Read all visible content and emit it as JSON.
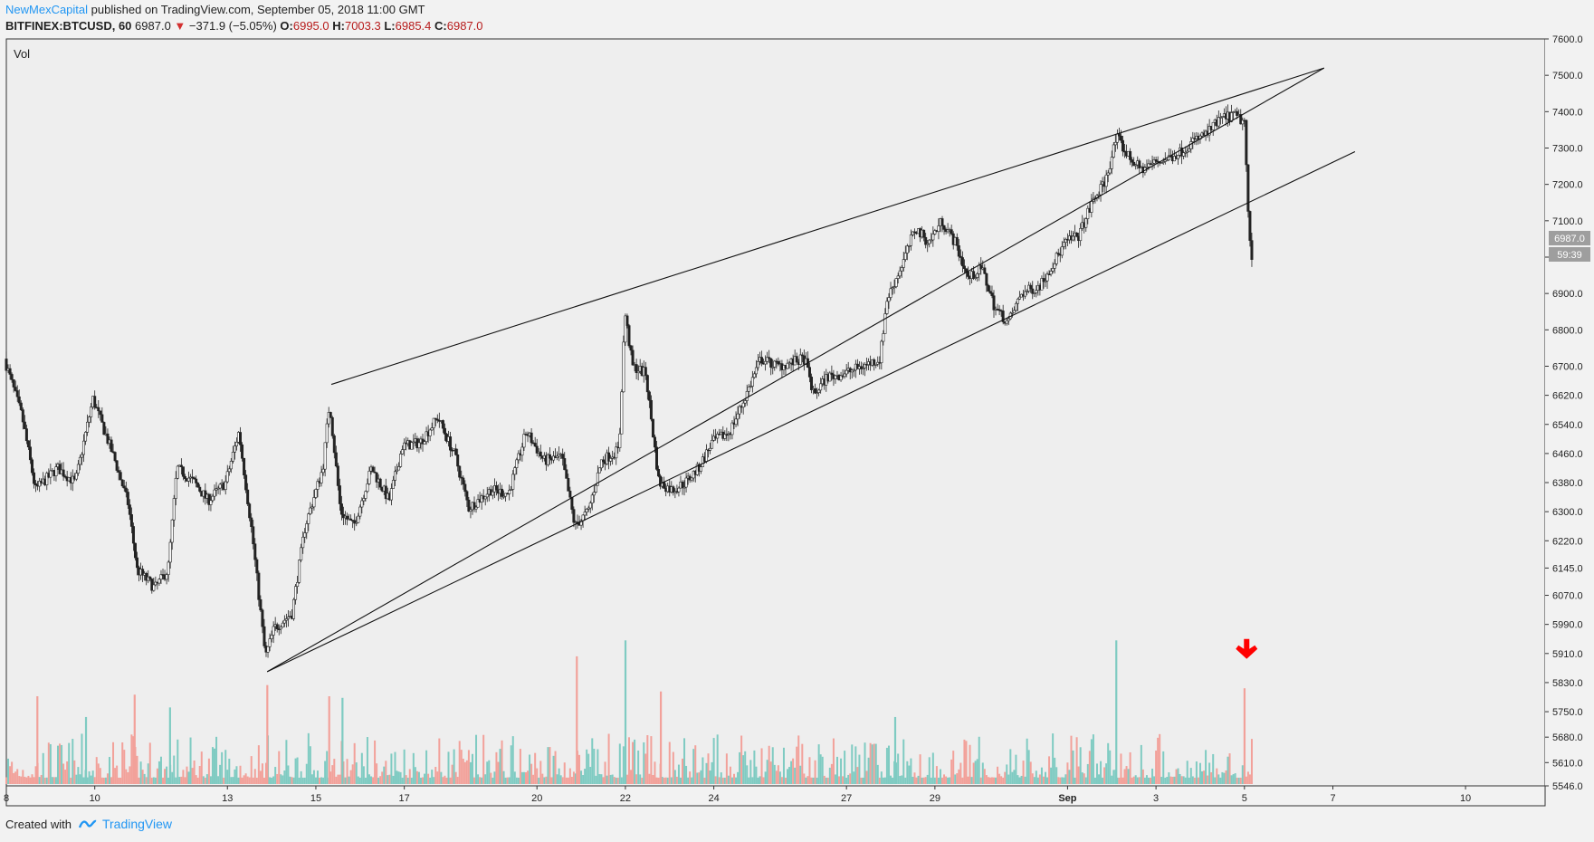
{
  "header": {
    "publisher": "NewMexCapital",
    "published_text": "published on TradingView.com, September 05, 2018 11:00 GMT",
    "symbol": "BITFINEX:BTCUSD, 60",
    "last": "6987.0",
    "change": "−371.9 (−5.05%)",
    "o_label": "O:",
    "o_value": "6995.0",
    "h_label": "H:",
    "h_value": "7003.3",
    "l_label": "L:",
    "l_value": "6985.4",
    "c_label": "C:",
    "c_value": "6987.0"
  },
  "pane_label": "Vol",
  "price_tag": "6987.0",
  "countdown": "59:39",
  "footer": {
    "created_with": "Created with",
    "brand": "TradingView"
  },
  "colors": {
    "up_volume": "#7fcbc2",
    "down_volume": "#f2a19a",
    "candle": "#222222",
    "arrow": "#ff0000",
    "brand": "#2196f3"
  },
  "chart_data": {
    "type": "candlestick",
    "title": "BITFINEX:BTCUSD, 60",
    "timeframe": "60",
    "ylim": [
      5546,
      7600
    ],
    "y_ticks": [
      "7600.0",
      "7500.0",
      "7400.0",
      "7300.0",
      "7200.0",
      "7100.0",
      "7000.0",
      "6900.0",
      "6800.0",
      "6700.0",
      "6620.0",
      "6540.0",
      "6460.0",
      "6380.0",
      "6300.0",
      "6220.0",
      "6145.0",
      "6070.0",
      "5990.0",
      "5910.0",
      "5830.0",
      "5750.0",
      "5680.0",
      "5610.0",
      "5546.0"
    ],
    "x_ticks": [
      "8",
      "10",
      "13",
      "15",
      "17",
      "20",
      "22",
      "24",
      "27",
      "29",
      "Sep",
      "3",
      "5",
      "7",
      "10"
    ],
    "x_tick_days": [
      8,
      10,
      13,
      15,
      17,
      20,
      22,
      24,
      27,
      29,
      32,
      34,
      36,
      38,
      41
    ],
    "x_range_days": [
      8,
      42.8
    ],
    "price_path": [
      [
        8,
        6720
      ],
      [
        8.4,
        6560
      ],
      [
        8.7,
        6360
      ],
      [
        9.2,
        6420
      ],
      [
        9.6,
        6380
      ],
      [
        10,
        6610
      ],
      [
        10.5,
        6440
      ],
      [
        10.8,
        6320
      ],
      [
        11,
        6140
      ],
      [
        11.4,
        6090
      ],
      [
        11.7,
        6140
      ],
      [
        11.9,
        6420
      ],
      [
        12.3,
        6380
      ],
      [
        12.6,
        6330
      ],
      [
        13,
        6380
      ],
      [
        13.3,
        6520
      ],
      [
        13.6,
        6240
      ],
      [
        13.9,
        5900
      ],
      [
        14.1,
        5980
      ],
      [
        14.5,
        6020
      ],
      [
        14.8,
        6260
      ],
      [
        15.2,
        6420
      ],
      [
        15.35,
        6600
      ],
      [
        15.6,
        6300
      ],
      [
        15.9,
        6260
      ],
      [
        16.3,
        6420
      ],
      [
        16.7,
        6330
      ],
      [
        17,
        6480
      ],
      [
        17.4,
        6490
      ],
      [
        17.8,
        6560
      ],
      [
        18.2,
        6450
      ],
      [
        18.5,
        6310
      ],
      [
        19,
        6360
      ],
      [
        19.4,
        6350
      ],
      [
        19.8,
        6520
      ],
      [
        20.2,
        6440
      ],
      [
        20.6,
        6450
      ],
      [
        20.9,
        6260
      ],
      [
        21.2,
        6300
      ],
      [
        21.5,
        6440
      ],
      [
        21.9,
        6470
      ],
      [
        22.03,
        6850
      ],
      [
        22.2,
        6700
      ],
      [
        22.5,
        6680
      ],
      [
        22.8,
        6380
      ],
      [
        23.1,
        6360
      ],
      [
        23.4,
        6380
      ],
      [
        23.7,
        6420
      ],
      [
        24,
        6490
      ],
      [
        24.4,
        6520
      ],
      [
        24.7,
        6600
      ],
      [
        25.1,
        6720
      ],
      [
        25.5,
        6700
      ],
      [
        25.8,
        6710
      ],
      [
        26.1,
        6720
      ],
      [
        26.3,
        6620
      ],
      [
        26.6,
        6670
      ],
      [
        27,
        6680
      ],
      [
        27.4,
        6700
      ],
      [
        27.8,
        6720
      ],
      [
        27.95,
        6880
      ],
      [
        28.3,
        6980
      ],
      [
        28.6,
        7080
      ],
      [
        28.9,
        7040
      ],
      [
        29.2,
        7100
      ],
      [
        29.5,
        7040
      ],
      [
        29.8,
        6940
      ],
      [
        30.1,
        6970
      ],
      [
        30.4,
        6860
      ],
      [
        30.7,
        6820
      ],
      [
        31,
        6900
      ],
      [
        31.4,
        6920
      ],
      [
        31.7,
        6980
      ],
      [
        32,
        7040
      ],
      [
        32.3,
        7060
      ],
      [
        32.6,
        7150
      ],
      [
        32.9,
        7210
      ],
      [
        33.15,
        7330
      ],
      [
        33.4,
        7280
      ],
      [
        33.7,
        7240
      ],
      [
        34,
        7260
      ],
      [
        34.3,
        7270
      ],
      [
        34.6,
        7290
      ],
      [
        34.9,
        7320
      ],
      [
        35.2,
        7340
      ],
      [
        35.5,
        7380
      ],
      [
        35.8,
        7390
      ],
      [
        36.05,
        7370
      ],
      [
        36.12,
        7120
      ],
      [
        36.2,
        6990
      ]
    ],
    "volume_spikes": [
      [
        8.7,
        0.55,
        "down"
      ],
      [
        9.8,
        0.42,
        "up"
      ],
      [
        10.9,
        0.56,
        "down"
      ],
      [
        11.7,
        0.48,
        "up"
      ],
      [
        13.9,
        0.62,
        "down"
      ],
      [
        15.3,
        0.55,
        "down"
      ],
      [
        15.6,
        0.54,
        "up"
      ],
      [
        20.9,
        0.8,
        "down"
      ],
      [
        22.0,
        0.9,
        "up"
      ],
      [
        22.8,
        0.58,
        "down"
      ],
      [
        28.1,
        0.42,
        "up"
      ],
      [
        33.1,
        0.9,
        "up"
      ],
      [
        36.0,
        0.6,
        "down"
      ]
    ],
    "trendlines": [
      {
        "name": "upper",
        "points": [
          [
            13.9,
            5860
          ],
          [
            37.8,
            7520
          ]
        ]
      },
      {
        "name": "upper_wedge",
        "points": [
          [
            15.35,
            6650
          ],
          [
            37.8,
            7520
          ]
        ]
      },
      {
        "name": "lower",
        "points": [
          [
            13.9,
            5860
          ],
          [
            38.5,
            7290
          ]
        ]
      }
    ],
    "annotation": {
      "type": "arrow-down",
      "at_day": 36.05
    }
  }
}
